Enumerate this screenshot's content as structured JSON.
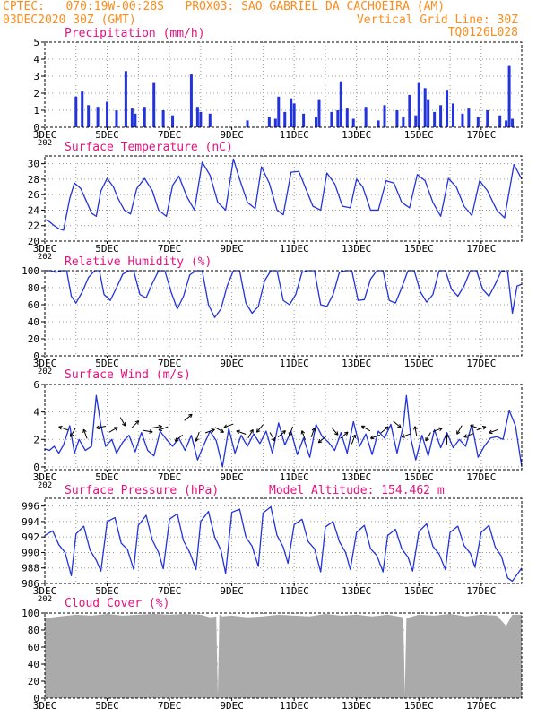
{
  "header": {
    "line1_left": "CPTEC:   070:19W-00:28S   PROX03: SAO GABRIEL DA CACHOEIRA (AM)",
    "line2_left": "03DEC2020 30Z (GMT)",
    "line2_right": "Vertical Grid Line: 30Z",
    "line3_right": "TQ0126L028"
  },
  "colors": {
    "header": "#ff8c1a",
    "title": "#e8107e",
    "series": "#2233dd",
    "cloud": "#aaaaaa",
    "grid": "#999999"
  },
  "x_axis": {
    "labels": [
      "3DEC",
      "5DEC",
      "7DEC",
      "9DEC",
      "11DEC",
      "13DEC",
      "15DEC",
      "17DEC"
    ],
    "label_days": [
      3,
      5,
      7,
      9,
      11,
      13,
      15,
      17
    ],
    "grid_days": [
      4,
      5,
      6,
      7,
      8,
      9,
      10,
      11,
      12,
      13,
      14,
      15,
      16,
      17
    ],
    "start_day": 3,
    "end_day": 18.3,
    "year_stub": "202"
  },
  "chart_data": [
    {
      "id": "precip",
      "type": "bar",
      "title": "Precipitation (mm/h)",
      "ylim": [
        0,
        5
      ],
      "yticks": [
        "0",
        "1",
        "2",
        "3",
        "4",
        "5"
      ],
      "x": [
        4.0,
        4.2,
        4.4,
        4.7,
        5.0,
        5.3,
        5.6,
        5.8,
        5.9,
        6.2,
        6.5,
        6.8,
        7.1,
        7.7,
        7.9,
        8.0,
        8.3,
        9.5,
        10.2,
        10.4,
        10.5,
        10.7,
        10.9,
        11.0,
        11.3,
        11.7,
        11.8,
        12.2,
        12.4,
        12.5,
        12.7,
        12.9,
        13.3,
        13.7,
        13.9,
        14.3,
        14.5,
        14.7,
        14.9,
        15.0,
        15.2,
        15.3,
        15.5,
        15.7,
        15.9,
        16.1,
        16.4,
        16.6,
        16.9,
        17.2,
        17.6,
        17.8,
        17.9,
        18.0
      ],
      "values": [
        1.8,
        2.1,
        1.3,
        1.2,
        1.5,
        1.0,
        3.3,
        1.1,
        0.8,
        1.2,
        2.6,
        1.0,
        0.7,
        3.1,
        1.2,
        0.9,
        0.8,
        0.4,
        0.6,
        0.5,
        1.8,
        0.9,
        1.7,
        1.4,
        0.8,
        0.6,
        1.6,
        0.9,
        1.0,
        2.7,
        1.1,
        0.5,
        1.2,
        0.4,
        1.3,
        1.0,
        0.6,
        1.9,
        0.7,
        2.6,
        2.3,
        1.6,
        0.9,
        1.3,
        2.2,
        1.4,
        0.8,
        1.1,
        0.6,
        1.0,
        0.7,
        0.4,
        3.6,
        0.5
      ]
    },
    {
      "id": "temp",
      "type": "line",
      "title": "Surface Temperature (nC)",
      "ylim": [
        20,
        31
      ],
      "yticks": [
        "20",
        "22",
        "24",
        "26",
        "28",
        "30"
      ],
      "x": [
        3.0,
        3.15,
        3.3,
        3.45,
        3.6,
        3.8,
        3.95,
        4.15,
        4.35,
        4.5,
        4.65,
        4.8,
        5.0,
        5.2,
        5.35,
        5.55,
        5.75,
        5.95,
        6.2,
        6.45,
        6.65,
        6.9,
        7.1,
        7.3,
        7.55,
        7.8,
        8.05,
        8.3,
        8.55,
        8.8,
        9.05,
        9.25,
        9.5,
        9.75,
        9.95,
        10.2,
        10.45,
        10.65,
        10.9,
        11.15,
        11.35,
        11.6,
        11.85,
        12.05,
        12.3,
        12.55,
        12.8,
        13.0,
        13.2,
        13.45,
        13.7,
        13.95,
        14.2,
        14.45,
        14.7,
        14.95,
        15.2,
        15.45,
        15.7,
        15.95,
        16.2,
        16.45,
        16.7,
        16.95,
        17.2,
        17.5,
        17.75,
        18.05,
        18.3
      ],
      "values": [
        22.8,
        22.5,
        22.0,
        21.6,
        21.4,
        25.5,
        27.5,
        26.8,
        25.0,
        23.6,
        23.2,
        26.5,
        28.1,
        27.0,
        25.5,
        24.0,
        23.5,
        26.8,
        28.1,
        26.5,
        24.0,
        23.2,
        27.2,
        28.4,
        25.8,
        24.0,
        30.2,
        28.5,
        25.0,
        24.0,
        30.6,
        28.0,
        25.0,
        24.2,
        29.6,
        27.5,
        24.0,
        23.4,
        28.9,
        29.0,
        27.0,
        24.5,
        24.0,
        28.8,
        27.4,
        24.5,
        24.3,
        28.0,
        27.0,
        24.0,
        24.0,
        27.8,
        27.5,
        25.0,
        24.3,
        28.6,
        27.8,
        25.0,
        23.2,
        28.1,
        27.0,
        24.5,
        23.3,
        27.8,
        26.5,
        24.0,
        23.0,
        29.9,
        28.0
      ]
    },
    {
      "id": "rh",
      "type": "line",
      "title": "Relative Humidity (%)",
      "ylim": [
        0,
        100
      ],
      "yticks": [
        "0",
        "20",
        "40",
        "60",
        "80",
        "100"
      ],
      "x": [
        3.0,
        3.2,
        3.35,
        3.55,
        3.7,
        3.85,
        4.0,
        4.2,
        4.4,
        4.6,
        4.75,
        4.9,
        5.1,
        5.3,
        5.5,
        5.7,
        5.85,
        6.05,
        6.25,
        6.45,
        6.65,
        6.85,
        7.05,
        7.25,
        7.45,
        7.65,
        7.85,
        8.05,
        8.25,
        8.45,
        8.65,
        8.85,
        9.05,
        9.25,
        9.45,
        9.65,
        9.85,
        10.05,
        10.25,
        10.45,
        10.65,
        10.85,
        11.05,
        11.25,
        11.45,
        11.65,
        11.85,
        12.05,
        12.25,
        12.45,
        12.65,
        12.85,
        13.05,
        13.25,
        13.45,
        13.65,
        13.85,
        14.05,
        14.25,
        14.45,
        14.65,
        14.85,
        15.05,
        15.25,
        15.45,
        15.65,
        15.85,
        16.05,
        16.25,
        16.45,
        16.65,
        16.85,
        17.05,
        17.25,
        17.45,
        17.65,
        17.85,
        18.0,
        18.15,
        18.3
      ],
      "values": [
        100,
        100,
        98,
        100,
        100,
        70,
        62,
        75,
        92,
        100,
        100,
        72,
        65,
        80,
        96,
        100,
        100,
        72,
        68,
        85,
        100,
        100,
        75,
        55,
        70,
        95,
        100,
        100,
        60,
        45,
        55,
        82,
        100,
        100,
        62,
        50,
        58,
        88,
        100,
        100,
        65,
        60,
        72,
        98,
        100,
        100,
        60,
        58,
        72,
        98,
        100,
        100,
        65,
        66,
        90,
        100,
        100,
        65,
        62,
        80,
        100,
        100,
        75,
        63,
        72,
        100,
        100,
        78,
        70,
        82,
        100,
        100,
        78,
        70,
        84,
        100,
        98,
        50,
        82,
        84
      ]
    },
    {
      "id": "wind",
      "type": "line",
      "title": "Surface Wind (m/s)",
      "ylim": [
        -0.2,
        6
      ],
      "yticks": [
        "0",
        "2",
        "4",
        "6"
      ],
      "x": [
        3.0,
        3.15,
        3.3,
        3.45,
        3.6,
        3.8,
        3.95,
        4.1,
        4.3,
        4.5,
        4.65,
        4.8,
        4.95,
        5.15,
        5.3,
        5.5,
        5.7,
        5.9,
        6.1,
        6.3,
        6.5,
        6.7,
        6.9,
        7.1,
        7.3,
        7.5,
        7.7,
        7.9,
        8.1,
        8.3,
        8.5,
        8.7,
        8.9,
        9.1,
        9.3,
        9.5,
        9.7,
        9.9,
        10.1,
        10.3,
        10.5,
        10.7,
        10.9,
        11.1,
        11.3,
        11.5,
        11.7,
        11.9,
        12.1,
        12.3,
        12.5,
        12.7,
        12.9,
        13.1,
        13.3,
        13.5,
        13.7,
        13.9,
        14.1,
        14.3,
        14.5,
        14.6,
        14.75,
        14.9,
        15.1,
        15.3,
        15.5,
        15.7,
        15.9,
        16.1,
        16.3,
        16.5,
        16.7,
        16.9,
        17.1,
        17.3,
        17.5,
        17.7,
        17.9,
        18.1,
        18.3
      ],
      "values": [
        1.3,
        1.2,
        1.5,
        1.0,
        1.6,
        3.0,
        1.0,
        2.0,
        1.2,
        1.5,
        5.2,
        3.0,
        1.5,
        2.0,
        1.0,
        1.8,
        2.3,
        1.1,
        2.5,
        1.2,
        0.8,
        2.6,
        2.0,
        1.5,
        2.1,
        1.2,
        2.3,
        0.5,
        1.6,
        2.6,
        1.9,
        0.0,
        2.8,
        1.0,
        2.3,
        1.5,
        2.4,
        1.7,
        2.6,
        1.0,
        3.2,
        1.6,
        2.6,
        0.9,
        2.1,
        0.7,
        3.1,
        2.2,
        1.8,
        1.2,
        2.5,
        1.0,
        3.3,
        1.5,
        2.4,
        0.9,
        2.6,
        2.1,
        3.1,
        1.0,
        3.0,
        5.2,
        2.0,
        0.5,
        2.3,
        0.8,
        2.7,
        1.4,
        2.5,
        1.4,
        2.0,
        1.5,
        3.1,
        0.7,
        1.5,
        2.1,
        2.2,
        2.0,
        4.1,
        3.0,
        0.0
      ],
      "arrows_x": [
        3.6,
        3.9,
        4.3,
        4.8,
        5.2,
        5.5,
        5.9,
        6.3,
        6.6,
        6.8,
        7.3,
        7.6,
        7.9,
        8.3,
        8.6,
        8.9,
        9.3,
        9.6,
        9.9,
        10.3,
        10.6,
        10.9,
        11.3,
        11.6,
        11.9,
        12.3,
        12.6,
        12.9,
        13.3,
        13.6,
        13.9,
        14.3,
        14.6,
        14.9,
        15.3,
        15.6,
        15.9,
        16.3,
        16.6,
        16.8,
        17.0,
        17.4
      ],
      "arrows_y": [
        2.8,
        2.5,
        2.4,
        2.9,
        2.7,
        3.3,
        3.1,
        2.6,
        2.9,
        2.8,
        2.1,
        3.6,
        2.2,
        2.6,
        2.7,
        3.0,
        2.5,
        2.4,
        2.8,
        2.2,
        2.4,
        2.6,
        2.3,
        2.5,
        2.0,
        2.6,
        2.3,
        2.0,
        2.8,
        2.2,
        2.7,
        3.1,
        2.3,
        2.6,
        2.2,
        2.7,
        2.0,
        2.7,
        2.3,
        2.9,
        2.8,
        2.6
      ],
      "arrows_dir_deg": [
        160,
        240,
        110,
        190,
        30,
        300,
        45,
        350,
        10,
        200,
        220,
        40,
        250,
        20,
        330,
        200,
        160,
        60,
        230,
        300,
        40,
        250,
        110,
        70,
        220,
        310,
        40,
        70,
        150,
        200,
        40,
        320,
        200,
        100,
        240,
        20,
        90,
        240,
        200,
        160,
        20,
        200
      ]
    },
    {
      "id": "pres",
      "type": "line",
      "title": "Surface Pressure (hPa)",
      "subtitle": "Model Altitude: 154.462 m",
      "ylim": [
        986,
        997
      ],
      "yticks": [
        "986",
        "988",
        "990",
        "992",
        "994",
        "996"
      ],
      "x": [
        3.0,
        3.25,
        3.45,
        3.65,
        3.85,
        4.0,
        4.25,
        4.45,
        4.65,
        4.8,
        5.0,
        5.25,
        5.45,
        5.65,
        5.85,
        6.0,
        6.25,
        6.45,
        6.65,
        6.8,
        7.0,
        7.25,
        7.45,
        7.65,
        7.85,
        8.0,
        8.25,
        8.45,
        8.65,
        8.8,
        9.0,
        9.25,
        9.45,
        9.65,
        9.85,
        10.0,
        10.25,
        10.45,
        10.65,
        10.8,
        11.0,
        11.25,
        11.45,
        11.65,
        11.85,
        12.0,
        12.25,
        12.45,
        12.65,
        12.8,
        13.0,
        13.25,
        13.45,
        13.65,
        13.85,
        14.0,
        14.25,
        14.45,
        14.65,
        14.8,
        15.0,
        15.25,
        15.45,
        15.65,
        15.85,
        16.0,
        16.25,
        16.45,
        16.65,
        16.8,
        17.0,
        17.25,
        17.45,
        17.65,
        17.85,
        18.0,
        18.3
      ],
      "values": [
        992.2,
        992.8,
        991.0,
        990.0,
        987.0,
        992.4,
        993.4,
        990.3,
        989.0,
        987.6,
        994.0,
        994.5,
        991.2,
        990.4,
        987.8,
        993.5,
        994.8,
        991.6,
        990.0,
        987.9,
        994.3,
        995.0,
        991.5,
        990.0,
        987.8,
        994.0,
        995.3,
        992.0,
        990.3,
        987.3,
        995.2,
        995.6,
        992.0,
        990.8,
        988.2,
        995.1,
        995.9,
        992.2,
        990.7,
        988.6,
        993.6,
        994.3,
        991.4,
        990.5,
        987.5,
        993.3,
        994.0,
        991.4,
        990.0,
        987.8,
        992.6,
        993.5,
        990.5,
        989.6,
        987.5,
        992.2,
        993.0,
        990.5,
        989.4,
        987.6,
        992.7,
        993.7,
        990.8,
        989.8,
        987.8,
        992.6,
        993.4,
        990.9,
        989.9,
        988.1,
        992.6,
        993.5,
        990.7,
        989.5,
        986.7,
        986.3,
        988.0
      ]
    },
    {
      "id": "cloud",
      "type": "area",
      "title": "Cloud Cover (%)",
      "ylim": [
        0,
        100
      ],
      "yticks": [
        "0",
        "20",
        "40",
        "60",
        "80",
        "100"
      ],
      "x": [
        3.0,
        3.5,
        4.0,
        4.5,
        5.0,
        5.5,
        6.0,
        6.5,
        7.0,
        7.5,
        8.0,
        8.3,
        8.5,
        8.55,
        8.6,
        8.7,
        9.0,
        9.5,
        10.0,
        10.5,
        11.0,
        11.5,
        12.0,
        12.5,
        13.0,
        13.5,
        14.0,
        14.5,
        14.55,
        14.6,
        14.8,
        15.0,
        15.5,
        16.0,
        16.5,
        17.0,
        17.5,
        17.8,
        18.0,
        18.3
      ],
      "values": [
        94,
        96,
        98,
        97,
        99,
        97,
        98,
        99,
        98,
        99,
        98,
        95,
        96,
        3,
        98,
        96,
        97,
        95,
        96,
        98,
        97,
        96,
        99,
        97,
        98,
        96,
        98,
        95,
        5,
        94,
        96,
        98,
        97,
        99,
        96,
        98,
        97,
        85,
        98,
        98
      ]
    }
  ]
}
